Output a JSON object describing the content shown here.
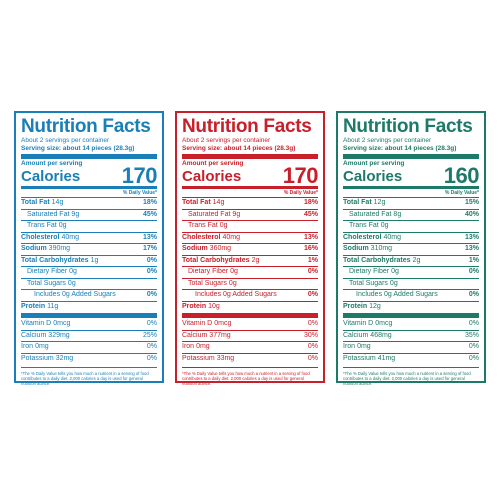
{
  "labels": [
    {
      "color": "#1a7fb8",
      "title": "Nutrition Facts",
      "servings": "About 2 servings per container",
      "serving_size": "Serving size: about 14 pieces (28.3g)",
      "amount_per_serving": "Amount per serving",
      "calories_label": "Calories",
      "calories": "170",
      "dv_header": "% Daily Value*",
      "total_fat": {
        "label": "Total Fat",
        "amount": "14g",
        "dv": "18%"
      },
      "sat_fat": {
        "label": "Saturated Fat",
        "amount": "9g",
        "dv": "45%"
      },
      "trans_fat": {
        "label": "Trans Fat",
        "amount": "0g"
      },
      "cholesterol": {
        "label": "Cholesterol",
        "amount": "40mg",
        "dv": "13%"
      },
      "sodium": {
        "label": "Sodium",
        "amount": "390mg",
        "dv": "17%"
      },
      "carbs": {
        "label": "Total Carbohydrates",
        "amount": "1g",
        "dv": "0%"
      },
      "fiber": {
        "label": "Dietary Fiber",
        "amount": "0g",
        "dv": "0%"
      },
      "sugars": {
        "label": "Total Sugars",
        "amount": "0g"
      },
      "added_sugars": {
        "label": "Includes 0g Added Sugars",
        "dv": "0%"
      },
      "protein": {
        "label": "Protein",
        "amount": "11g"
      },
      "vitamin_d": {
        "label": "Vitamin D",
        "amount": "0mcg",
        "dv": "0%"
      },
      "calcium": {
        "label": "Calcium",
        "amount": "329mg",
        "dv": "25%"
      },
      "iron": {
        "label": "Iron",
        "amount": "0mg",
        "dv": "0%"
      },
      "potassium": {
        "label": "Potassium",
        "amount": "32mg",
        "dv": "0%"
      },
      "footnote": "*The % Daily Value tells you how much a nutrient in a serving of food contributes to a daily diet. 2,000 calories a day is used for general nutrition advice."
    },
    {
      "color": "#c8202a",
      "title": "Nutrition Facts",
      "servings": "About 2 servings per container",
      "serving_size": "Serving size: about 14 pieces (28.3g)",
      "amount_per_serving": "Amount per serving",
      "calories_label": "Calories",
      "calories": "170",
      "dv_header": "% Daily Value*",
      "total_fat": {
        "label": "Total Fat",
        "amount": "14g",
        "dv": "18%"
      },
      "sat_fat": {
        "label": "Saturated Fat",
        "amount": "9g",
        "dv": "45%"
      },
      "trans_fat": {
        "label": "Trans Fat",
        "amount": "0g"
      },
      "cholesterol": {
        "label": "Cholesterol",
        "amount": "40mg",
        "dv": "13%"
      },
      "sodium": {
        "label": "Sodium",
        "amount": "360mg",
        "dv": "16%"
      },
      "carbs": {
        "label": "Total Carbohydrates",
        "amount": "2g",
        "dv": "1%"
      },
      "fiber": {
        "label": "Dietary Fiber",
        "amount": "0g",
        "dv": "0%"
      },
      "sugars": {
        "label": "Total Sugars",
        "amount": "0g"
      },
      "added_sugars": {
        "label": "Includes 0g Added Sugars",
        "dv": "0%"
      },
      "protein": {
        "label": "Protein",
        "amount": "10g"
      },
      "vitamin_d": {
        "label": "Vitamin D",
        "amount": "0mcg",
        "dv": "0%"
      },
      "calcium": {
        "label": "Calcium",
        "amount": "377mg",
        "dv": "30%"
      },
      "iron": {
        "label": "Iron",
        "amount": "0mg",
        "dv": "0%"
      },
      "potassium": {
        "label": "Potassium",
        "amount": "33mg",
        "dv": "0%"
      },
      "footnote": "*The % Daily Value tells you how much a nutrient in a serving of food contributes to a daily diet. 2,000 calories a day is used for general nutrition advice."
    },
    {
      "color": "#1e7a68",
      "title": "Nutrition Facts",
      "servings": "About 2 servings per container",
      "serving_size": "Serving size: about 14 pieces (28.3g)",
      "amount_per_serving": "Amount per serving",
      "calories_label": "Calories",
      "calories": "160",
      "dv_header": "% Daily Value*",
      "total_fat": {
        "label": "Total Fat",
        "amount": "12g",
        "dv": "15%"
      },
      "sat_fat": {
        "label": "Saturated Fat",
        "amount": "8g",
        "dv": "40%"
      },
      "trans_fat": {
        "label": "Trans Fat",
        "amount": "0g"
      },
      "cholesterol": {
        "label": "Cholesterol",
        "amount": "40mg",
        "dv": "13%"
      },
      "sodium": {
        "label": "Sodium",
        "amount": "310mg",
        "dv": "13%"
      },
      "carbs": {
        "label": "Total Carbohydrates",
        "amount": "2g",
        "dv": "1%"
      },
      "fiber": {
        "label": "Dietary Fiber",
        "amount": "0g",
        "dv": "0%"
      },
      "sugars": {
        "label": "Total Sugars",
        "amount": "0g"
      },
      "added_sugars": {
        "label": "Includes 0g Added Sugars",
        "dv": "0%"
      },
      "protein": {
        "label": "Protein",
        "amount": "12g"
      },
      "vitamin_d": {
        "label": "Vitamin D",
        "amount": "0mcg",
        "dv": "0%"
      },
      "calcium": {
        "label": "Calcium",
        "amount": "468mg",
        "dv": "35%"
      },
      "iron": {
        "label": "Iron",
        "amount": "0mg",
        "dv": "0%"
      },
      "potassium": {
        "label": "Potassium",
        "amount": "41mg",
        "dv": "0%"
      },
      "footnote": "*The % Daily Value tells you how much a nutrient in a serving of food contributes to a daily diet. 2,000 calories a day is used for general nutrition advice."
    }
  ]
}
